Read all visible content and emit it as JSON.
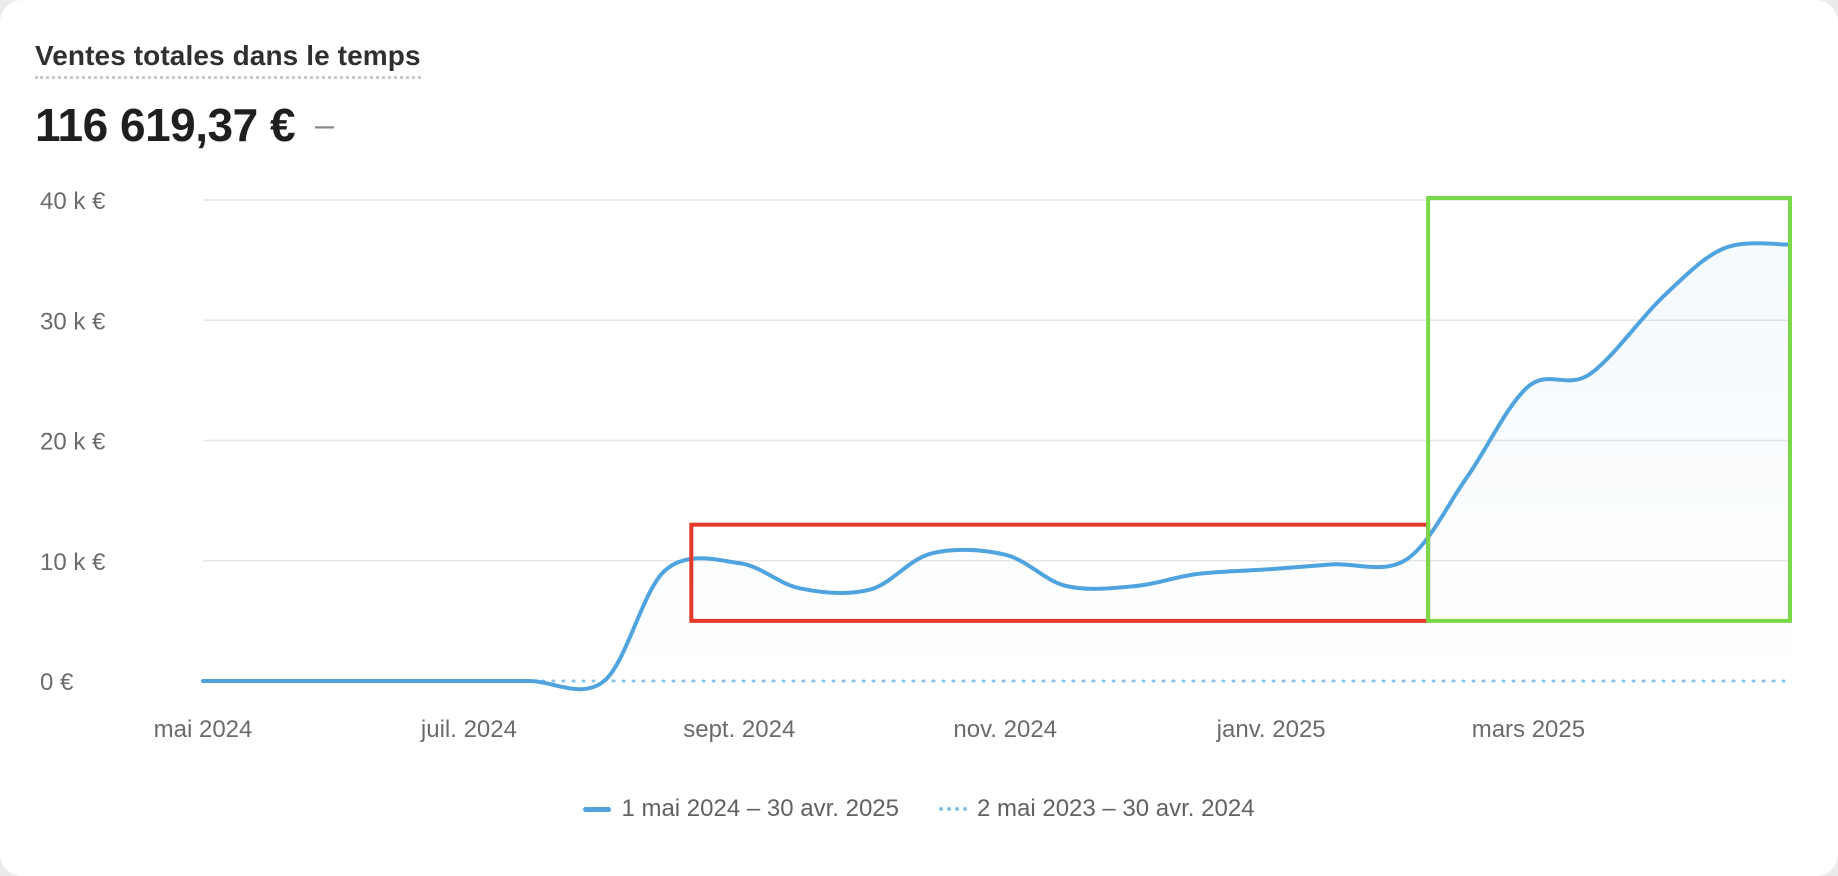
{
  "card": {
    "title": "Ventes totales dans le temps",
    "total": "116 619,37 €",
    "comparison": "–"
  },
  "chart_data": {
    "type": "line",
    "x": [
      "2024-05-01",
      "2024-06-01",
      "2024-07-01",
      "2024-07-15",
      "2024-08-01",
      "2024-08-15",
      "2024-09-01",
      "2024-09-15",
      "2024-10-01",
      "2024-10-15",
      "2024-11-01",
      "2024-11-15",
      "2024-12-01",
      "2024-12-15",
      "2025-01-01",
      "2025-01-15",
      "2025-02-01",
      "2025-02-15",
      "2025-03-01",
      "2025-03-15",
      "2025-04-01",
      "2025-04-15",
      "2025-04-30"
    ],
    "series": [
      {
        "name": "1 mai 2024 – 30 avr. 2025",
        "values": [
          0,
          0,
          0,
          0,
          0,
          9200,
          9800,
          7700,
          7600,
          10600,
          10500,
          7900,
          7900,
          8900,
          9300,
          9700,
          10100,
          17000,
          24500,
          25500,
          32000,
          36000,
          36300
        ],
        "color": "#4fa3de",
        "style": "solid"
      },
      {
        "name": "2 mai 2023 – 30 avr. 2024",
        "values": [
          0,
          0,
          0,
          0,
          0,
          0,
          0,
          0,
          0,
          0,
          0,
          0,
          0,
          0,
          0,
          0,
          0,
          0,
          0,
          0,
          0,
          0,
          0
        ],
        "color": "#86c3ea",
        "style": "dotted"
      }
    ],
    "x_tick_labels": [
      "mai 2024",
      "juil. 2024",
      "sept. 2024",
      "nov. 2024",
      "janv. 2025",
      "mars 2025"
    ],
    "x_tick_dates": [
      "2024-05-01",
      "2024-07-01",
      "2024-09-01",
      "2024-11-01",
      "2025-01-01",
      "2025-03-01"
    ],
    "y_tick_labels": [
      "0 €",
      "10 k €",
      "20 k €",
      "30 k €",
      "40 k €"
    ],
    "y_ticks": [
      0,
      10000,
      20000,
      30000,
      40000
    ],
    "ylim": [
      0,
      40000
    ],
    "grid": true,
    "legend": "bottom-center",
    "annotations": [
      {
        "shape": "rectangle",
        "color": "#e33a2c",
        "x_range": [
          "2024-08-21",
          "2025-02-06"
        ],
        "y_range": [
          5000,
          13000
        ]
      },
      {
        "shape": "rectangle",
        "color": "#79d94a",
        "x_range": [
          "2025-02-06",
          "2025-04-30"
        ],
        "y_range": [
          5000,
          40000
        ]
      }
    ]
  }
}
